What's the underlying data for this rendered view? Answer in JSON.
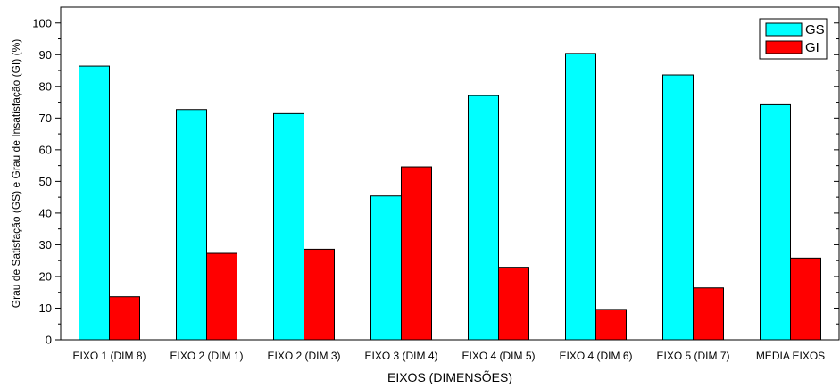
{
  "chart_data": {
    "type": "bar",
    "title": "",
    "xlabel": "EIXOS (DIMENSÕES)",
    "ylabel": "Grau de Satisfação (GS) e Grau de Insatisfação (GI)  (%)",
    "ylim": [
      0,
      105
    ],
    "yticks": [
      0,
      10,
      20,
      30,
      40,
      50,
      60,
      70,
      80,
      90,
      100
    ],
    "grid": false,
    "legend_position": "top-right",
    "categories": [
      "EIXO 1 (DIM 8)",
      "EIXO 2 (DIM 1)",
      "EIXO 2 (DIM 3)",
      "EIXO 3 (DIM 4)",
      "EIXO 4 (DIM 5)",
      "EIXO 4 (DIM 6)",
      "EIXO 5 (DIM 7)",
      "MÉDIA EIXOS"
    ],
    "series": [
      {
        "name": "GS",
        "color": "#00FFFF",
        "values": [
          86.4,
          72.7,
          71.4,
          45.4,
          77.1,
          90.4,
          83.6,
          74.2
        ]
      },
      {
        "name": "GI",
        "color": "#FF0000",
        "values": [
          13.6,
          27.3,
          28.6,
          54.6,
          22.9,
          9.6,
          16.4,
          25.8
        ]
      }
    ]
  }
}
